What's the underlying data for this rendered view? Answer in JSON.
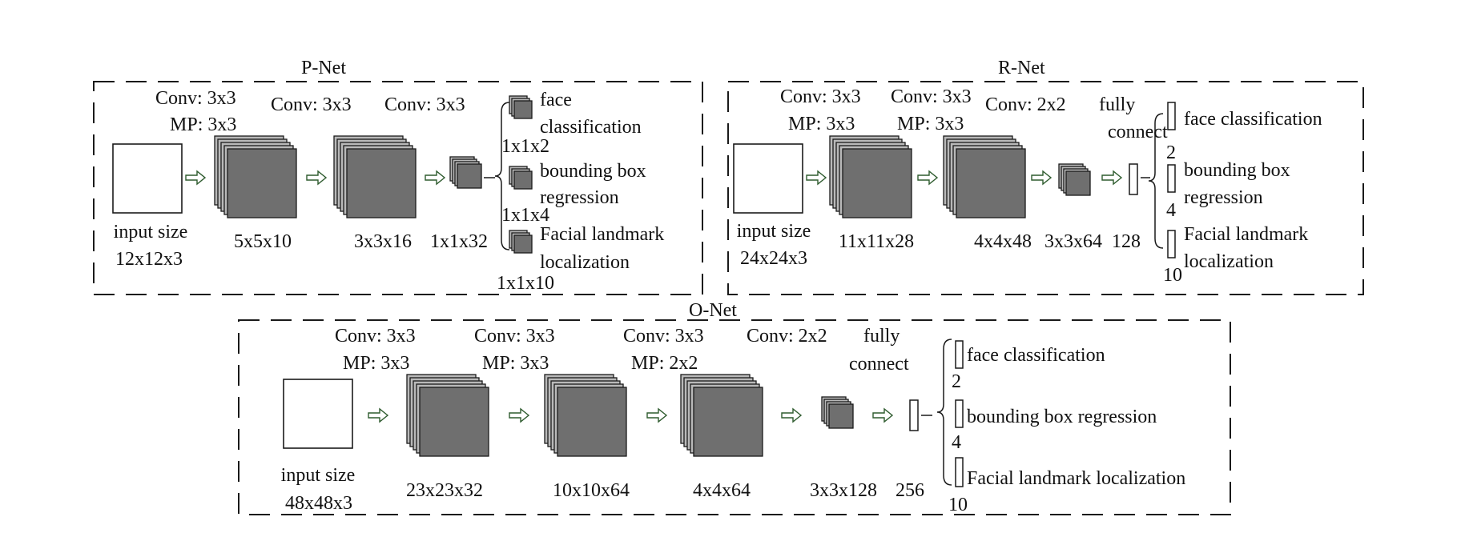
{
  "colors": {
    "fill_dark": "#6f6f6f",
    "fill_light": "#b9b9b9",
    "stroke": "#1a1a1a",
    "arrow_fill": "#ffffff",
    "arrow_stroke": "#2f5c2f"
  },
  "pnet": {
    "title": "P-Net",
    "layers": [
      {
        "top1": "Conv: 3x3",
        "top2": "MP: 3x3"
      },
      {
        "top1": "Conv: 3x3"
      },
      {
        "top1": "Conv: 3x3"
      }
    ],
    "input_label_1": "input size",
    "input_label_2": "12x12x3",
    "dims": [
      "5x5x10",
      "3x3x16",
      "1x1x32"
    ],
    "outputs": [
      {
        "label1": "face",
        "label2": "classification",
        "dim": "1x1x2"
      },
      {
        "label1": "bounding box",
        "label2": "regression",
        "dim": "1x1x4"
      },
      {
        "label1": "Facial landmark",
        "label2": "localization",
        "dim": "1x1x10"
      }
    ]
  },
  "rnet": {
    "title": "R-Net",
    "layers": [
      {
        "top1": "Conv: 3x3",
        "top2": "MP: 3x3"
      },
      {
        "top1": "Conv: 3x3",
        "top2": "MP: 3x3"
      },
      {
        "top1": "Conv: 2x2"
      }
    ],
    "fc_label_1": "fully",
    "fc_label_2": "connect",
    "input_label_1": "input size",
    "input_label_2": "24x24x3",
    "dims": [
      "11x11x28",
      "4x4x48",
      "3x3x64",
      "128"
    ],
    "outputs": [
      {
        "label1": "face classification",
        "dim": "2"
      },
      {
        "label1": "bounding box",
        "label2": "regression",
        "dim": "4"
      },
      {
        "label1": "Facial landmark",
        "label2": "localization",
        "dim": "10"
      }
    ]
  },
  "onet": {
    "title": "O-Net",
    "layers": [
      {
        "top1": "Conv: 3x3",
        "top2": "MP: 3x3"
      },
      {
        "top1": "Conv: 3x3",
        "top2": "MP: 3x3"
      },
      {
        "top1": "Conv: 3x3",
        "top2": "MP: 2x2"
      },
      {
        "top1": "Conv: 2x2"
      }
    ],
    "fc_label_1": "fully",
    "fc_label_2": "connect",
    "input_label_1": "input size",
    "input_label_2": "48x48x3",
    "dims": [
      "23x23x32",
      "10x10x64",
      "4x4x64",
      "3x3x128",
      "256"
    ],
    "outputs": [
      {
        "label1": "face classification",
        "dim": "2"
      },
      {
        "label1": "bounding box regression",
        "dim": "4"
      },
      {
        "label1": "Facial landmark localization",
        "dim": "10"
      }
    ]
  }
}
